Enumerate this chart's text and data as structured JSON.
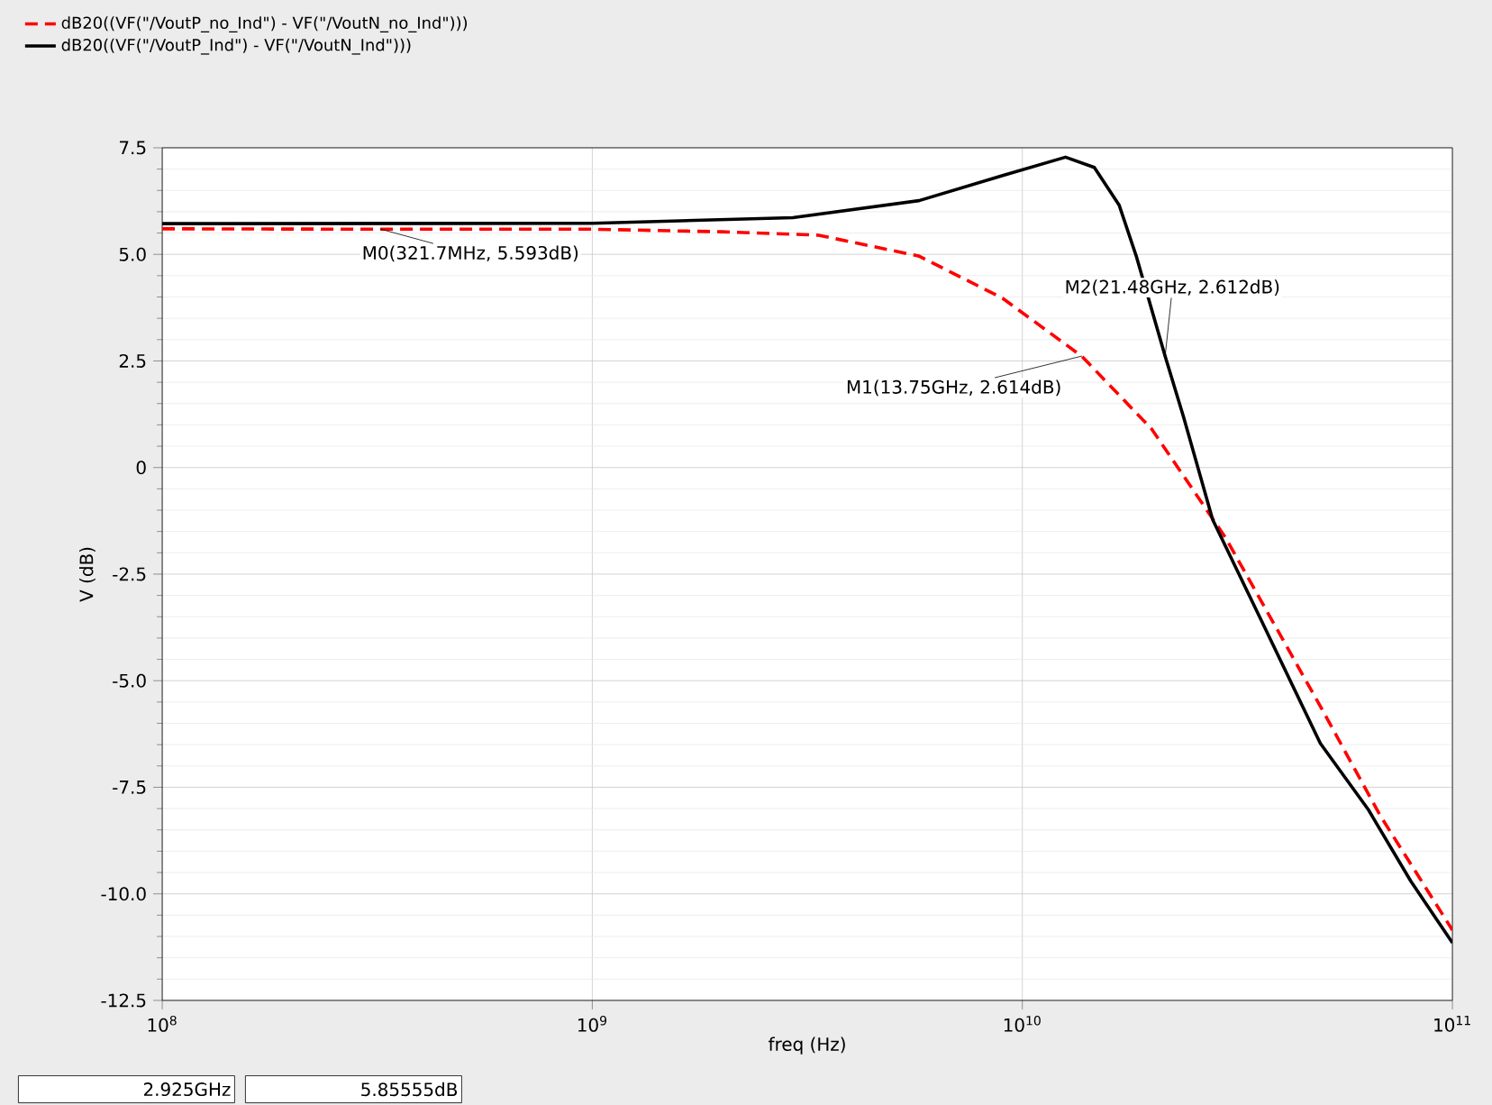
{
  "chart_data": {
    "type": "line",
    "xlabel": "freq (Hz)",
    "ylabel": "V (dB)",
    "log": "x",
    "grid": true,
    "legend": "top left",
    "xlim": [
      100000000.0,
      100000000000.0
    ],
    "ylim": [
      -12.5,
      7.5
    ],
    "xticks": [
      {
        "value": 100000000.0,
        "label": "10$^{8}$"
      },
      {
        "value": 1000000000.0,
        "label": "10$^{9}$"
      },
      {
        "value": 10000000000.0,
        "label": "10$^{10}$"
      },
      {
        "value": 100000000000.0,
        "label": "10$^{11}$"
      }
    ],
    "yticks": [
      7.5,
      {
        "value": 5,
        "label": "5.0"
      },
      2.5,
      0,
      -2.5,
      {
        "value": -5,
        "label": "-5.0"
      },
      -7.5,
      {
        "value": -10,
        "label": "-10.0"
      },
      -12.5
    ],
    "series": [
      {
        "name": "dB20((VF(\"/VoutP_no_Ind\") - VF(\"/VoutN_no_Ind\")))",
        "color": "#ff0000",
        "line_style": "dashed",
        "x": [
          100000000.0,
          321700000.0,
          1000000000.0,
          2000000000.0,
          3360000000.0,
          5750000000.0,
          9000000000.0,
          13750000000.0,
          20000000000.0,
          29700000000.0,
          49300000000.0,
          68000000000.0,
          100000000000.0
        ],
        "values": [
          5.6,
          5.59,
          5.59,
          5.53,
          5.45,
          4.96,
          3.97,
          2.61,
          0.9,
          -1.65,
          -5.6,
          -8.17,
          -10.85
        ]
      },
      {
        "name": "dB20((VF(\"/VoutP_Ind\") - VF(\"/VoutN_Ind\")))",
        "color": "#000000",
        "line_style": "solid",
        "x": [
          100000000.0,
          1000000000.0,
          2925000000.0,
          5750000000.0,
          9000000000.0,
          12600000000.0,
          14700000000.0,
          16800000000.0,
          18400000000.0,
          21480000000.0,
          23700000000.0,
          27700000000.0,
          36000000000.0,
          49300000000.0,
          63800000000.0,
          80000000000.0,
          100000000000.0
        ],
        "values": [
          5.72,
          5.73,
          5.86,
          6.26,
          6.85,
          7.28,
          7.04,
          6.15,
          4.96,
          2.61,
          1.19,
          -1.22,
          -3.6,
          -6.47,
          -8.03,
          -9.7,
          -11.15
        ]
      }
    ],
    "annotations": [
      {
        "text": "M0(321.7MHz, 5.593dB)",
        "x": 321700000.0,
        "y": 5.593
      },
      {
        "text": "M1(13.75GHz, 2.614dB)",
        "x": 13750000000.0,
        "y": 2.614
      },
      {
        "text": "M2(21.48GHz, 2.612dB)",
        "x": 21480000000.0,
        "y": 2.612
      },
      "2.925GHz",
      "5.85555dB"
    ]
  }
}
